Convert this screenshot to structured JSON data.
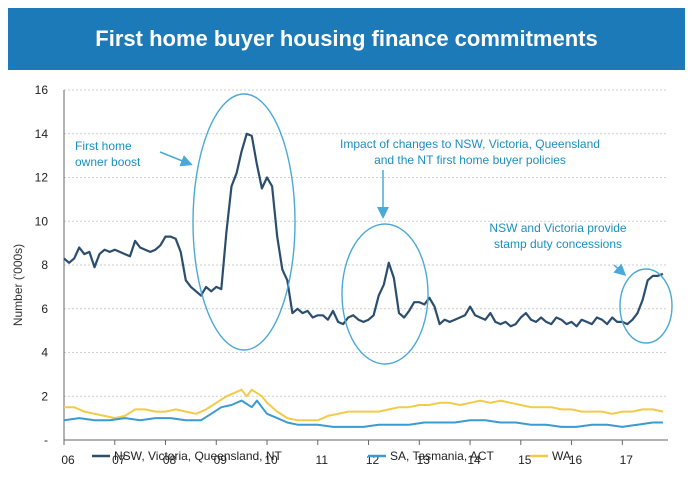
{
  "title": "First home buyer housing finance commitments",
  "chart_data": {
    "type": "line",
    "ylabel": "Number ('000s)",
    "ylim": [
      0,
      16
    ],
    "yticks": [
      "-",
      "2",
      "4",
      "6",
      "8",
      "10",
      "12",
      "14",
      "16"
    ],
    "xticks": [
      "06",
      "07",
      "08",
      "09",
      "10",
      "11",
      "12",
      "13",
      "14",
      "15",
      "16",
      "17"
    ],
    "x_range": [
      2006.0,
      2017.9
    ],
    "grid": true,
    "legend_position": "bottom",
    "series": [
      {
        "name": "NSW, Victoria, Queensland, NT",
        "color": "#2b4e6e",
        "points": [
          [
            2006.0,
            8.3
          ],
          [
            2006.1,
            8.1
          ],
          [
            2006.2,
            8.3
          ],
          [
            2006.3,
            8.8
          ],
          [
            2006.4,
            8.5
          ],
          [
            2006.5,
            8.6
          ],
          [
            2006.6,
            7.9
          ],
          [
            2006.7,
            8.5
          ],
          [
            2006.8,
            8.7
          ],
          [
            2006.9,
            8.6
          ],
          [
            2007.0,
            8.7
          ],
          [
            2007.1,
            8.6
          ],
          [
            2007.2,
            8.5
          ],
          [
            2007.3,
            8.4
          ],
          [
            2007.4,
            9.1
          ],
          [
            2007.5,
            8.8
          ],
          [
            2007.6,
            8.7
          ],
          [
            2007.7,
            8.6
          ],
          [
            2007.8,
            8.7
          ],
          [
            2007.9,
            8.9
          ],
          [
            2008.0,
            9.3
          ],
          [
            2008.1,
            9.3
          ],
          [
            2008.2,
            9.2
          ],
          [
            2008.3,
            8.6
          ],
          [
            2008.4,
            7.3
          ],
          [
            2008.5,
            7.0
          ],
          [
            2008.6,
            6.8
          ],
          [
            2008.7,
            6.6
          ],
          [
            2008.8,
            7.0
          ],
          [
            2008.9,
            6.8
          ],
          [
            2009.0,
            7.0
          ],
          [
            2009.1,
            6.9
          ],
          [
            2009.2,
            9.5
          ],
          [
            2009.3,
            11.6
          ],
          [
            2009.4,
            12.2
          ],
          [
            2009.5,
            13.2
          ],
          [
            2009.6,
            14.0
          ],
          [
            2009.7,
            13.9
          ],
          [
            2009.8,
            12.6
          ],
          [
            2009.9,
            11.5
          ],
          [
            2010.0,
            12.0
          ],
          [
            2010.1,
            11.6
          ],
          [
            2010.2,
            9.3
          ],
          [
            2010.3,
            7.8
          ],
          [
            2010.4,
            7.3
          ],
          [
            2010.5,
            5.8
          ],
          [
            2010.6,
            6.0
          ],
          [
            2010.7,
            5.8
          ],
          [
            2010.8,
            5.9
          ],
          [
            2010.9,
            5.6
          ],
          [
            2011.0,
            5.7
          ],
          [
            2011.1,
            5.7
          ],
          [
            2011.2,
            5.5
          ],
          [
            2011.3,
            5.9
          ],
          [
            2011.4,
            5.4
          ],
          [
            2011.5,
            5.3
          ],
          [
            2011.6,
            5.6
          ],
          [
            2011.7,
            5.7
          ],
          [
            2011.8,
            5.5
          ],
          [
            2011.9,
            5.4
          ],
          [
            2012.0,
            5.5
          ],
          [
            2012.1,
            5.7
          ],
          [
            2012.2,
            6.6
          ],
          [
            2012.3,
            7.1
          ],
          [
            2012.4,
            8.1
          ],
          [
            2012.5,
            7.4
          ],
          [
            2012.6,
            5.8
          ],
          [
            2012.7,
            5.6
          ],
          [
            2012.8,
            5.9
          ],
          [
            2012.9,
            6.3
          ],
          [
            2013.0,
            6.3
          ],
          [
            2013.1,
            6.2
          ],
          [
            2013.2,
            6.5
          ],
          [
            2013.3,
            6.1
          ],
          [
            2013.4,
            5.3
          ],
          [
            2013.5,
            5.5
          ],
          [
            2013.6,
            5.4
          ],
          [
            2013.7,
            5.5
          ],
          [
            2013.8,
            5.6
          ],
          [
            2013.9,
            5.7
          ],
          [
            2014.0,
            6.1
          ],
          [
            2014.1,
            5.7
          ],
          [
            2014.2,
            5.6
          ],
          [
            2014.3,
            5.5
          ],
          [
            2014.4,
            5.8
          ],
          [
            2014.5,
            5.4
          ],
          [
            2014.6,
            5.3
          ],
          [
            2014.7,
            5.4
          ],
          [
            2014.8,
            5.2
          ],
          [
            2014.9,
            5.3
          ],
          [
            2015.0,
            5.6
          ],
          [
            2015.1,
            5.8
          ],
          [
            2015.2,
            5.5
          ],
          [
            2015.3,
            5.4
          ],
          [
            2015.4,
            5.6
          ],
          [
            2015.5,
            5.4
          ],
          [
            2015.6,
            5.3
          ],
          [
            2015.7,
            5.6
          ],
          [
            2015.8,
            5.5
          ],
          [
            2015.9,
            5.3
          ],
          [
            2016.0,
            5.4
          ],
          [
            2016.1,
            5.2
          ],
          [
            2016.2,
            5.5
          ],
          [
            2016.3,
            5.4
          ],
          [
            2016.4,
            5.3
          ],
          [
            2016.5,
            5.6
          ],
          [
            2016.6,
            5.5
          ],
          [
            2016.7,
            5.3
          ],
          [
            2016.8,
            5.6
          ],
          [
            2016.9,
            5.4
          ],
          [
            2017.0,
            5.4
          ],
          [
            2017.1,
            5.3
          ],
          [
            2017.2,
            5.5
          ],
          [
            2017.3,
            5.8
          ],
          [
            2017.4,
            6.4
          ],
          [
            2017.5,
            7.3
          ],
          [
            2017.6,
            7.5
          ],
          [
            2017.7,
            7.5
          ],
          [
            2017.8,
            7.6
          ]
        ]
      },
      {
        "name": "SA, Tasmania, ACT",
        "color": "#3b9bd1",
        "points": [
          [
            2006.0,
            0.9
          ],
          [
            2006.3,
            1.0
          ],
          [
            2006.6,
            0.9
          ],
          [
            2006.9,
            0.9
          ],
          [
            2007.2,
            1.0
          ],
          [
            2007.5,
            0.9
          ],
          [
            2007.8,
            1.0
          ],
          [
            2008.1,
            1.0
          ],
          [
            2008.4,
            0.9
          ],
          [
            2008.7,
            0.9
          ],
          [
            2008.9,
            1.2
          ],
          [
            2009.1,
            1.5
          ],
          [
            2009.3,
            1.6
          ],
          [
            2009.5,
            1.8
          ],
          [
            2009.7,
            1.5
          ],
          [
            2009.8,
            1.8
          ],
          [
            2010.0,
            1.2
          ],
          [
            2010.2,
            1.0
          ],
          [
            2010.4,
            0.8
          ],
          [
            2010.6,
            0.7
          ],
          [
            2010.8,
            0.7
          ],
          [
            2011.0,
            0.7
          ],
          [
            2011.3,
            0.6
          ],
          [
            2011.6,
            0.6
          ],
          [
            2011.9,
            0.6
          ],
          [
            2012.2,
            0.7
          ],
          [
            2012.5,
            0.7
          ],
          [
            2012.8,
            0.7
          ],
          [
            2013.1,
            0.8
          ],
          [
            2013.4,
            0.8
          ],
          [
            2013.7,
            0.8
          ],
          [
            2014.0,
            0.9
          ],
          [
            2014.3,
            0.9
          ],
          [
            2014.6,
            0.8
          ],
          [
            2014.9,
            0.8
          ],
          [
            2015.2,
            0.7
          ],
          [
            2015.5,
            0.7
          ],
          [
            2015.8,
            0.6
          ],
          [
            2016.1,
            0.6
          ],
          [
            2016.4,
            0.7
          ],
          [
            2016.7,
            0.7
          ],
          [
            2017.0,
            0.6
          ],
          [
            2017.3,
            0.7
          ],
          [
            2017.6,
            0.8
          ],
          [
            2017.8,
            0.8
          ]
        ]
      },
      {
        "name": "WA",
        "color": "#f2cb4a",
        "points": [
          [
            2006.0,
            1.5
          ],
          [
            2006.2,
            1.5
          ],
          [
            2006.4,
            1.3
          ],
          [
            2006.6,
            1.2
          ],
          [
            2006.8,
            1.1
          ],
          [
            2007.0,
            1.0
          ],
          [
            2007.2,
            1.1
          ],
          [
            2007.4,
            1.4
          ],
          [
            2007.6,
            1.4
          ],
          [
            2007.8,
            1.3
          ],
          [
            2008.0,
            1.3
          ],
          [
            2008.2,
            1.4
          ],
          [
            2008.4,
            1.3
          ],
          [
            2008.6,
            1.2
          ],
          [
            2008.8,
            1.4
          ],
          [
            2009.0,
            1.7
          ],
          [
            2009.2,
            2.0
          ],
          [
            2009.4,
            2.2
          ],
          [
            2009.5,
            2.3
          ],
          [
            2009.6,
            2.0
          ],
          [
            2009.7,
            2.3
          ],
          [
            2009.9,
            2.0
          ],
          [
            2010.0,
            1.7
          ],
          [
            2010.2,
            1.3
          ],
          [
            2010.4,
            1.0
          ],
          [
            2010.6,
            0.9
          ],
          [
            2010.8,
            0.9
          ],
          [
            2011.0,
            0.9
          ],
          [
            2011.2,
            1.1
          ],
          [
            2011.4,
            1.2
          ],
          [
            2011.6,
            1.3
          ],
          [
            2011.8,
            1.3
          ],
          [
            2012.0,
            1.3
          ],
          [
            2012.2,
            1.3
          ],
          [
            2012.4,
            1.4
          ],
          [
            2012.6,
            1.5
          ],
          [
            2012.8,
            1.5
          ],
          [
            2013.0,
            1.6
          ],
          [
            2013.2,
            1.6
          ],
          [
            2013.4,
            1.7
          ],
          [
            2013.6,
            1.7
          ],
          [
            2013.8,
            1.6
          ],
          [
            2014.0,
            1.7
          ],
          [
            2014.2,
            1.8
          ],
          [
            2014.4,
            1.7
          ],
          [
            2014.6,
            1.8
          ],
          [
            2014.8,
            1.7
          ],
          [
            2015.0,
            1.6
          ],
          [
            2015.2,
            1.5
          ],
          [
            2015.4,
            1.5
          ],
          [
            2015.6,
            1.5
          ],
          [
            2015.8,
            1.4
          ],
          [
            2016.0,
            1.4
          ],
          [
            2016.2,
            1.3
          ],
          [
            2016.4,
            1.3
          ],
          [
            2016.6,
            1.3
          ],
          [
            2016.8,
            1.2
          ],
          [
            2017.0,
            1.3
          ],
          [
            2017.2,
            1.3
          ],
          [
            2017.4,
            1.4
          ],
          [
            2017.6,
            1.4
          ],
          [
            2017.8,
            1.3
          ]
        ]
      }
    ],
    "annotations": [
      {
        "lines": [
          "First home",
          "owner boost"
        ]
      },
      {
        "lines": [
          "Impact of changes to NSW, Victoria, Queensland",
          "and the NT first home buyer policies"
        ]
      },
      {
        "lines": [
          "NSW and Victoria provide",
          "stamp duty concessions"
        ]
      }
    ]
  }
}
